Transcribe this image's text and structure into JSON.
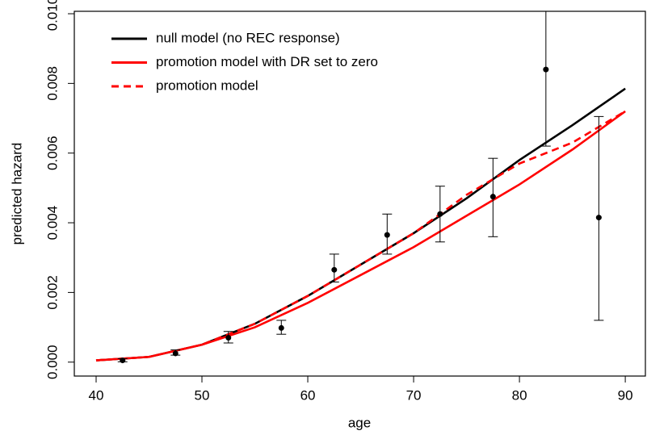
{
  "chart_data": {
    "type": "line",
    "xlabel": "age",
    "ylabel": "predicted hazard",
    "x": [
      40,
      45,
      50,
      55,
      60,
      65,
      70,
      75,
      80,
      85,
      90
    ],
    "series": [
      {
        "name": "null model (no REC response)",
        "color": "#000000",
        "dash": false,
        "values": [
          5e-05,
          0.00015,
          0.0005,
          0.0011,
          0.0019,
          0.0028,
          0.0037,
          0.0047,
          0.0058,
          0.0068,
          0.00785
        ]
      },
      {
        "name": "promotion model with DR set to zero",
        "color": "#ff0000",
        "dash": false,
        "values": [
          5e-05,
          0.00015,
          0.0005,
          0.001,
          0.0017,
          0.0025,
          0.0033,
          0.0042,
          0.0051,
          0.0061,
          0.0072
        ]
      },
      {
        "name": "promotion model",
        "color": "#ff0000",
        "dash": true,
        "values": [
          5e-05,
          0.00015,
          0.0005,
          0.0011,
          0.0019,
          0.0028,
          0.0037,
          0.0048,
          0.0057,
          0.0063,
          0.0072
        ]
      }
    ],
    "points": {
      "color": "#000000",
      "x": [
        42.5,
        47.5,
        52.5,
        57.5,
        62.5,
        67.5,
        72.5,
        77.5,
        82.5,
        87.5
      ],
      "values": [
        5e-05,
        0.00025,
        0.0007,
        0.00098,
        0.00265,
        0.00365,
        0.00425,
        0.00475,
        0.0084,
        0.00415
      ],
      "lower": [
        1e-05,
        0.0002,
        0.00055,
        0.0008,
        0.0023,
        0.0031,
        0.00345,
        0.0036,
        0.0062,
        0.0012
      ],
      "upper": [
        0.0001,
        0.00035,
        0.00088,
        0.0012,
        0.0031,
        0.00425,
        0.00505,
        0.00585,
        0.0106,
        0.00705
      ]
    },
    "xlim": [
      37.94,
      91.9
    ],
    "xticks": [
      40,
      50,
      60,
      70,
      80,
      90
    ],
    "ylim": [
      -0.0004,
      0.01007
    ],
    "yticks": [
      {
        "value": 0,
        "label": "0.000"
      },
      0.002,
      0.004,
      0.006,
      0.008,
      {
        "value": 0.01,
        "label": "0.010"
      }
    ],
    "legend": "top-left"
  }
}
